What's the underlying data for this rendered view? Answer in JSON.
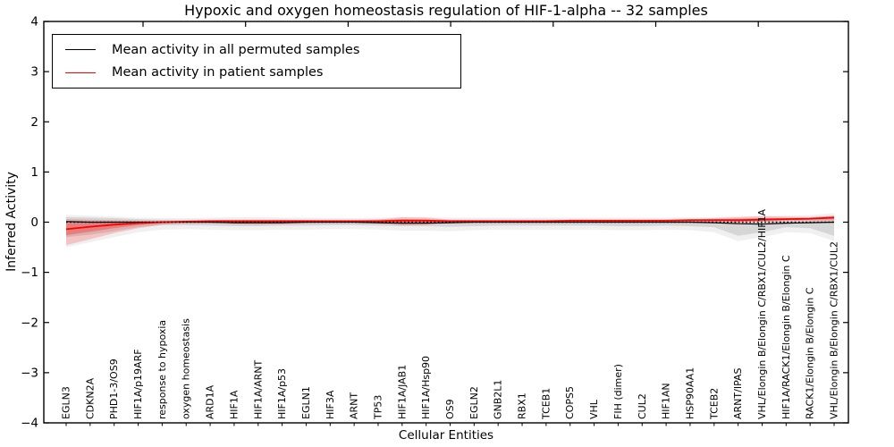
{
  "title": "Hypoxic and oxygen homeostasis regulation of HIF-1-alpha -- 32 samples",
  "legend": {
    "entries": [
      {
        "label": "Mean activity in all permuted samples",
        "color": "#000000"
      },
      {
        "label": "Mean activity in patient samples",
        "color": "#ff0000"
      }
    ]
  },
  "chart_data": {
    "type": "line",
    "title": "Hypoxic and oxygen homeostasis regulation of HIF-1-alpha -- 32 samples",
    "xlabel": "Cellular Entities",
    "ylabel": "Inferred Activity",
    "ylim": [
      -4,
      4
    ],
    "ytick_values": [
      4,
      3,
      2,
      1,
      0,
      -1,
      -2,
      -3,
      -4
    ],
    "ytick_labels": [
      "4",
      "3",
      "2",
      "1",
      "0",
      "−1",
      "−2",
      "−3",
      "−4"
    ],
    "grid": false,
    "legend_position": "upper left",
    "categories": [
      "EGLN3",
      "CDKN2A",
      "PHD1-3/OS9",
      "HIF1A/p19ARF",
      "response to hypoxia",
      "oxygen homeostasis",
      "ARD1A",
      "HIF1A",
      "HIF1A/ARNT",
      "HIF1A/p53",
      "EGLN1",
      "HIF3A",
      "ARNT",
      "TP53",
      "HIF1A/JAB1",
      "HIF1A/Hsp90",
      "OS9",
      "EGLN2",
      "GNB2L1",
      "RBX1",
      "TCEB1",
      "COPS5",
      "VHL",
      "FIH (dimer)",
      "CUL2",
      "HIF1AN",
      "HSP90AA1",
      "TCEB2",
      "ARNT/IPAS",
      "VHL/Elongin B/Elongin C/RBX1/CUL2/HIF1A",
      "HIF1A/RACK1/Elongin B/Elongin C",
      "RACK1/Elongin B/Elongin C",
      "VHL/Elongin B/Elongin C/RBX1/CUL2"
    ],
    "series": [
      {
        "name": "Mean activity in all permuted samples",
        "color": "#000000",
        "style": "solid",
        "width": 1.2,
        "values": [
          0.01,
          0,
          0,
          0,
          0,
          0,
          0,
          -0.01,
          -0.01,
          -0.01,
          0,
          0,
          0,
          -0.01,
          -0.02,
          -0.02,
          -0.01,
          0,
          0,
          0,
          0,
          0,
          0,
          0,
          0,
          0,
          0,
          -0.01,
          -0.03,
          -0.04,
          -0.02,
          -0.01,
          0
        ]
      },
      {
        "name": "Mean activity in patient samples",
        "color": "#ff0000",
        "style": "solid",
        "width": 1.8,
        "values": [
          -0.14,
          -0.09,
          -0.05,
          -0.02,
          0,
          0.01,
          0.02,
          0.02,
          0.02,
          0.02,
          0.02,
          0.02,
          0.02,
          0.02,
          0.03,
          0.03,
          0.02,
          0.02,
          0.02,
          0.02,
          0.02,
          0.03,
          0.03,
          0.03,
          0.03,
          0.03,
          0.04,
          0.04,
          0.04,
          0.05,
          0.06,
          0.07,
          0.09
        ]
      },
      {
        "name": "zero-reference",
        "color": "#000000",
        "style": "dotted",
        "width": 1.4,
        "constant": 0
      }
    ],
    "bands": [
      {
        "name": "permuted-std-outer-band",
        "color": "rgba(110,110,110,0.10)",
        "upper": [
          0.15,
          0.13,
          0.11,
          0.09,
          0.08,
          0.08,
          0.09,
          0.1,
          0.1,
          0.09,
          0.09,
          0.08,
          0.08,
          0.09,
          0.1,
          0.1,
          0.09,
          0.09,
          0.09,
          0.09,
          0.09,
          0.09,
          0.09,
          0.09,
          0.09,
          0.09,
          0.1,
          0.1,
          0.11,
          0.12,
          0.13,
          0.14,
          0.18
        ],
        "lower": [
          -0.5,
          -0.4,
          -0.3,
          -0.2,
          -0.15,
          -0.14,
          -0.15,
          -0.16,
          -0.16,
          -0.15,
          -0.15,
          -0.14,
          -0.14,
          -0.15,
          -0.17,
          -0.17,
          -0.18,
          -0.16,
          -0.15,
          -0.15,
          -0.15,
          -0.15,
          -0.15,
          -0.16,
          -0.16,
          -0.15,
          -0.16,
          -0.2,
          -0.38,
          -0.3,
          -0.2,
          -0.22,
          -0.38
        ]
      },
      {
        "name": "permuted-std-band",
        "color": "rgba(110,110,110,0.20)",
        "upper": [
          0.1,
          0.09,
          0.08,
          0.06,
          0.05,
          0.05,
          0.05,
          0.05,
          0.05,
          0.05,
          0.05,
          0.05,
          0.05,
          0.06,
          0.06,
          0.06,
          0.05,
          0.05,
          0.05,
          0.05,
          0.05,
          0.05,
          0.05,
          0.05,
          0.05,
          0.05,
          0.06,
          0.06,
          0.06,
          0.07,
          0.08,
          0.09,
          0.13
        ],
        "lower": [
          -0.3,
          -0.25,
          -0.18,
          -0.1,
          -0.06,
          -0.06,
          -0.07,
          -0.08,
          -0.08,
          -0.07,
          -0.07,
          -0.06,
          -0.06,
          -0.07,
          -0.08,
          -0.08,
          -0.09,
          -0.08,
          -0.07,
          -0.07,
          -0.07,
          -0.07,
          -0.07,
          -0.08,
          -0.08,
          -0.07,
          -0.08,
          -0.1,
          -0.27,
          -0.2,
          -0.1,
          -0.12,
          -0.27
        ]
      },
      {
        "name": "patient-std-outer-band",
        "color": "rgba(255,0,0,0.18)",
        "upper": [
          0.06,
          0.05,
          0.04,
          0.03,
          0.03,
          0.03,
          0.04,
          0.05,
          0.05,
          0.05,
          0.04,
          0.03,
          0.03,
          0.05,
          0.1,
          0.09,
          0.05,
          0.04,
          0.04,
          0.04,
          0.04,
          0.04,
          0.04,
          0.04,
          0.04,
          0.05,
          0.06,
          0.08,
          0.1,
          0.12,
          0.11,
          0.1,
          0.13
        ],
        "lower": [
          -0.46,
          -0.34,
          -0.22,
          -0.12,
          -0.05,
          -0.02,
          -0.02,
          -0.04,
          -0.05,
          -0.04,
          -0.02,
          -0.01,
          -0.01,
          -0.03,
          -0.06,
          -0.05,
          -0.02,
          0,
          0,
          0,
          0,
          0.01,
          0.01,
          0.01,
          0.01,
          0.01,
          0.01,
          0.01,
          0,
          0.01,
          0.02,
          0.03,
          0.02
        ]
      },
      {
        "name": "patient-std-inner-band",
        "color": "rgba(255,0,0,0.28)",
        "upper": [
          -0.02,
          -0.01,
          0,
          0.01,
          0.01,
          0.02,
          0.03,
          0.03,
          0.03,
          0.03,
          0.03,
          0.03,
          0.03,
          0.03,
          0.06,
          0.05,
          0.03,
          0.03,
          0.03,
          0.03,
          0.03,
          0.03,
          0.03,
          0.03,
          0.03,
          0.04,
          0.05,
          0.06,
          0.07,
          0.08,
          0.08,
          0.08,
          0.11
        ],
        "lower": [
          -0.26,
          -0.19,
          -0.12,
          -0.06,
          -0.02,
          0,
          0,
          -0.01,
          -0.01,
          -0.01,
          0,
          0.01,
          0.01,
          0,
          -0.02,
          -0.01,
          0.01,
          0.01,
          0.01,
          0.01,
          0.01,
          0.01,
          0.01,
          0.01,
          0.01,
          0.02,
          0.02,
          0.03,
          0.02,
          0.03,
          0.04,
          0.05,
          0.06
        ]
      }
    ]
  }
}
